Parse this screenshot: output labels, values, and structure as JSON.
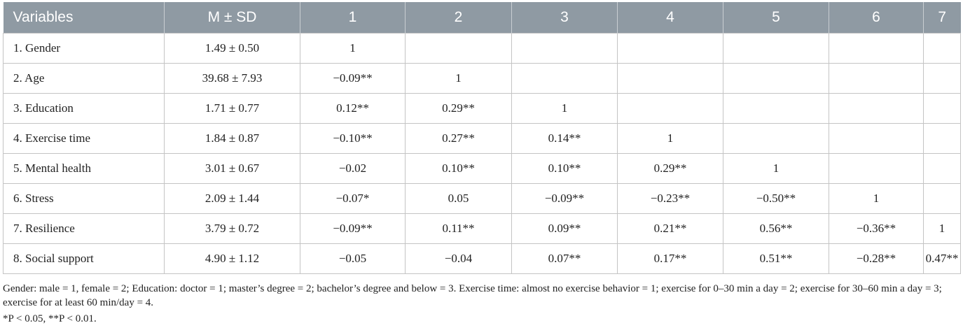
{
  "table": {
    "headers": [
      "Variables",
      "M ± SD",
      "1",
      "2",
      "3",
      "4",
      "5",
      "6",
      "7"
    ],
    "rows": [
      [
        "1. Gender",
        "1.49 ± 0.50",
        "1",
        "",
        "",
        "",
        "",
        "",
        ""
      ],
      [
        "2. Age",
        "39.68 ± 7.93",
        "−0.09**",
        "1",
        "",
        "",
        "",
        "",
        ""
      ],
      [
        "3. Education",
        "1.71 ± 0.77",
        "0.12**",
        "0.29**",
        "1",
        "",
        "",
        "",
        ""
      ],
      [
        "4. Exercise time",
        "1.84 ± 0.87",
        "−0.10**",
        "0.27**",
        "0.14**",
        "1",
        "",
        "",
        ""
      ],
      [
        "5. Mental health",
        "3.01 ± 0.67",
        "−0.02",
        "0.10**",
        "0.10**",
        "0.29**",
        "1",
        "",
        ""
      ],
      [
        "6. Stress",
        "2.09 ± 1.44",
        "−0.07*",
        "0.05",
        "−0.09**",
        "−0.23**",
        "−0.50**",
        "1",
        ""
      ],
      [
        "7. Resilience",
        "3.79 ± 0.72",
        "−0.09**",
        "0.11**",
        "0.09**",
        "0.21**",
        "0.56**",
        "−0.36**",
        "1"
      ],
      [
        "8. Social support",
        "4.90 ± 1.12",
        "−0.05",
        "−0.04",
        "0.07**",
        "0.17**",
        "0.51**",
        "−0.28**",
        "0.47**"
      ]
    ]
  },
  "footnotes": {
    "note1": "Gender: male = 1, female = 2; Education: doctor = 1; master’s degree = 2; bachelor’s degree and below = 3. Exercise time: almost no exercise behavior = 1; exercise for 0–30 min a day = 2; exercise for 30–60 min a day = 3; exercise for at least 60 min/day = 4.",
    "note2": "*P < 0.05, **P < 0.01."
  },
  "colors": {
    "header_bg": "#8f9aa3",
    "header_text": "#ffffff",
    "border": "#c4c4c4"
  }
}
